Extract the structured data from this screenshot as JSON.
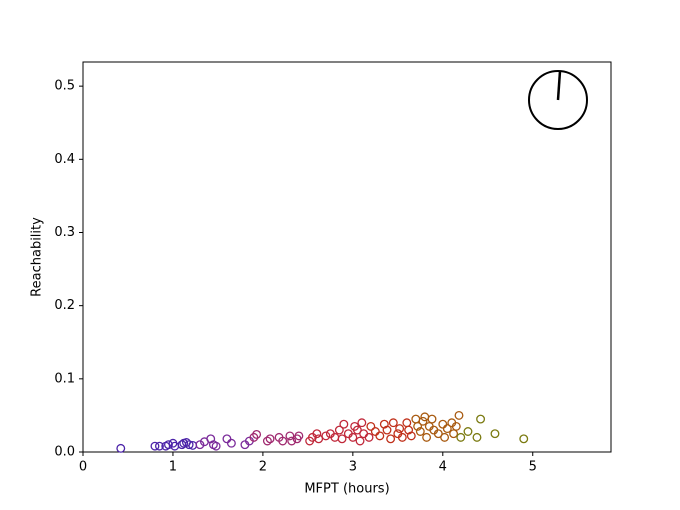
{
  "chart_data": {
    "type": "scatter",
    "x_label": "MFPT (hours)",
    "y_label": "Reachability",
    "x": [
      0.42,
      0.8,
      0.85,
      0.92,
      0.95,
      1.0,
      1.02,
      1.1,
      1.12,
      1.15,
      1.18,
      1.22,
      1.3,
      1.35,
      1.42,
      1.45,
      1.48,
      1.6,
      1.65,
      1.8,
      1.85,
      1.9,
      1.93,
      2.05,
      2.08,
      2.18,
      2.22,
      2.3,
      2.32,
      2.38,
      2.4,
      2.52,
      2.55,
      2.6,
      2.62,
      2.7,
      2.75,
      2.8,
      2.85,
      2.88,
      2.9,
      2.95,
      3.0,
      3.02,
      3.05,
      3.08,
      3.1,
      3.12,
      3.18,
      3.2,
      3.25,
      3.3,
      3.35,
      3.38,
      3.42,
      3.45,
      3.5,
      3.52,
      3.55,
      3.6,
      3.62,
      3.65,
      3.7,
      3.72,
      3.75,
      3.78,
      3.8,
      3.82,
      3.85,
      3.88,
      3.9,
      3.95,
      4.0,
      4.02,
      4.05,
      4.1,
      4.12,
      4.15,
      4.18,
      4.2,
      4.28,
      4.38,
      4.42,
      4.58,
      4.9
    ],
    "values": [
      0.005,
      0.008,
      0.008,
      0.008,
      0.01,
      0.012,
      0.008,
      0.01,
      0.012,
      0.013,
      0.01,
      0.009,
      0.01,
      0.014,
      0.018,
      0.01,
      0.008,
      0.018,
      0.012,
      0.01,
      0.015,
      0.02,
      0.024,
      0.015,
      0.018,
      0.02,
      0.015,
      0.022,
      0.015,
      0.018,
      0.022,
      0.015,
      0.02,
      0.025,
      0.018,
      0.022,
      0.025,
      0.02,
      0.03,
      0.018,
      0.038,
      0.025,
      0.02,
      0.035,
      0.03,
      0.015,
      0.04,
      0.025,
      0.02,
      0.035,
      0.028,
      0.022,
      0.038,
      0.03,
      0.018,
      0.04,
      0.025,
      0.032,
      0.02,
      0.04,
      0.03,
      0.022,
      0.045,
      0.035,
      0.028,
      0.042,
      0.048,
      0.02,
      0.035,
      0.045,
      0.03,
      0.025,
      0.038,
      0.02,
      0.032,
      0.04,
      0.025,
      0.035,
      0.05,
      0.02,
      0.028,
      0.02,
      0.045,
      0.025,
      0.018
    ],
    "colors": [
      "#4b22a8",
      "#4b22a8",
      "#4b22a8",
      "#4b22a8",
      "#4b22a8",
      "#4b22a8",
      "#4b22a8",
      "#4b22a8",
      "#4b22a8",
      "#4b22a8",
      "#4b22a8",
      "#4b22a8",
      "#7a2a9a",
      "#7a2a9a",
      "#7a2a9a",
      "#7a2a9a",
      "#7a2a9a",
      "#7a2a9a",
      "#7a2a9a",
      "#7a2a9a",
      "#7a2a9a",
      "#a02a70",
      "#a02a70",
      "#a02a70",
      "#a02a70",
      "#a02a70",
      "#a02a70",
      "#a02a70",
      "#a02a70",
      "#a02a70",
      "#a02a70",
      "#c0283a",
      "#c0283a",
      "#c0283a",
      "#c0283a",
      "#c0283a",
      "#c0283a",
      "#c0283a",
      "#c0283a",
      "#c0283a",
      "#c0283a",
      "#c0283a",
      "#c0283a",
      "#c0283a",
      "#c0283a",
      "#c0283a",
      "#c0283a",
      "#c0283a",
      "#c0283a",
      "#c0301a",
      "#c0301a",
      "#c0301a",
      "#c0301a",
      "#c0301a",
      "#c0301a",
      "#c0301a",
      "#c0301a",
      "#c0301a",
      "#c0301a",
      "#c0301a",
      "#c0301a",
      "#c0301a",
      "#a85a10",
      "#a85a10",
      "#a85a10",
      "#a85a10",
      "#a85a10",
      "#a85a10",
      "#a85a10",
      "#a85a10",
      "#a85a10",
      "#a85a10",
      "#a85a10",
      "#a85a10",
      "#a85a10",
      "#a85a10",
      "#a85a10",
      "#a85a10",
      "#a85a10",
      "#7a7a10",
      "#7a7a10",
      "#7a7a10",
      "#7a7a10",
      "#7a7a10",
      "#7a7a10"
    ],
    "xlim": [
      0,
      5.87
    ],
    "ylim": [
      0,
      0.533
    ],
    "xticks": [
      0,
      1,
      2,
      3,
      4,
      5
    ],
    "yticks": [
      {
        "value": 0,
        "label": "0.0"
      },
      0.1,
      0.2,
      0.3,
      0.4,
      0.5
    ]
  }
}
